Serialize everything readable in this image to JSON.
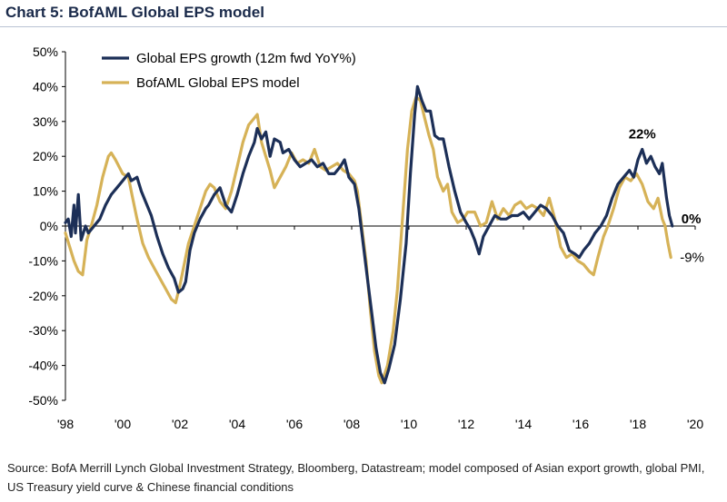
{
  "page": {
    "title": "Chart 5: BofAML Global EPS model",
    "source": "Source: BofA Merrill Lynch Global Investment Strategy, Bloomberg, Datastream; model composed of Asian export growth, global PMI, US Treasury yield curve & Chinese financial conditions"
  },
  "colors": {
    "global_eps": "#1c2f57",
    "model": "#d6b257",
    "title": "#1a2a4a"
  },
  "chart_data": {
    "type": "line",
    "ylim": [
      -50,
      50
    ],
    "yticks": [
      50,
      40,
      30,
      20,
      10,
      0,
      -10,
      -20,
      -30,
      -40,
      -50
    ],
    "ytick_labels": [
      "50%",
      "40%",
      "30%",
      "20%",
      "10%",
      "0%",
      "-10%",
      "-20%",
      "-30%",
      "-40%",
      "-50%"
    ],
    "xlim": [
      1998,
      2020
    ],
    "xticks": [
      1998,
      2000,
      2002,
      2004,
      2006,
      2008,
      2010,
      2012,
      2014,
      2016,
      2018,
      2020
    ],
    "xtick_labels": [
      "'98",
      "'00",
      "'02",
      "'04",
      "'06",
      "'08",
      "'10",
      "'12",
      "'14",
      "'16",
      "'18",
      "'20"
    ],
    "legend": "top-left",
    "series": [
      {
        "name": "Global EPS growth (12m fwd YoY%)",
        "color": "#1c2f57",
        "points": [
          [
            1998.0,
            1
          ],
          [
            1998.1,
            2
          ],
          [
            1998.2,
            -3
          ],
          [
            1998.3,
            6
          ],
          [
            1998.35,
            -2
          ],
          [
            1998.45,
            9
          ],
          [
            1998.55,
            -4
          ],
          [
            1998.7,
            0
          ],
          [
            1998.8,
            -2
          ],
          [
            1999.0,
            0
          ],
          [
            1999.2,
            2
          ],
          [
            1999.4,
            6
          ],
          [
            1999.6,
            9
          ],
          [
            1999.8,
            11
          ],
          [
            2000.0,
            13
          ],
          [
            2000.2,
            15
          ],
          [
            2000.3,
            13
          ],
          [
            2000.5,
            14
          ],
          [
            2000.65,
            10
          ],
          [
            2000.8,
            7
          ],
          [
            2001.0,
            3
          ],
          [
            2001.2,
            -3
          ],
          [
            2001.4,
            -8
          ],
          [
            2001.6,
            -12
          ],
          [
            2001.8,
            -15
          ],
          [
            2001.95,
            -19
          ],
          [
            2002.1,
            -18
          ],
          [
            2002.2,
            -16
          ],
          [
            2002.35,
            -7
          ],
          [
            2002.5,
            -2
          ],
          [
            2002.7,
            2
          ],
          [
            2002.9,
            5
          ],
          [
            2003.0,
            6
          ],
          [
            2003.2,
            9
          ],
          [
            2003.4,
            11
          ],
          [
            2003.6,
            6
          ],
          [
            2003.8,
            4
          ],
          [
            2004.0,
            9
          ],
          [
            2004.2,
            15
          ],
          [
            2004.4,
            20
          ],
          [
            2004.6,
            24
          ],
          [
            2004.7,
            28
          ],
          [
            2004.85,
            25
          ],
          [
            2005.0,
            27
          ],
          [
            2005.15,
            20
          ],
          [
            2005.3,
            25
          ],
          [
            2005.5,
            24
          ],
          [
            2005.6,
            21
          ],
          [
            2005.8,
            22
          ],
          [
            2006.0,
            19
          ],
          [
            2006.2,
            17
          ],
          [
            2006.4,
            18
          ],
          [
            2006.6,
            19
          ],
          [
            2006.8,
            17
          ],
          [
            2007.0,
            18
          ],
          [
            2007.2,
            15
          ],
          [
            2007.4,
            15
          ],
          [
            2007.6,
            17
          ],
          [
            2007.75,
            19
          ],
          [
            2007.9,
            14
          ],
          [
            2008.1,
            12
          ],
          [
            2008.25,
            5
          ],
          [
            2008.4,
            -5
          ],
          [
            2008.55,
            -15
          ],
          [
            2008.7,
            -25
          ],
          [
            2008.85,
            -35
          ],
          [
            2009.0,
            -42
          ],
          [
            2009.15,
            -45
          ],
          [
            2009.3,
            -41
          ],
          [
            2009.5,
            -34
          ],
          [
            2009.7,
            -21
          ],
          [
            2009.9,
            -5
          ],
          [
            2010.05,
            15
          ],
          [
            2010.2,
            32
          ],
          [
            2010.3,
            40
          ],
          [
            2010.45,
            36
          ],
          [
            2010.6,
            33
          ],
          [
            2010.75,
            33
          ],
          [
            2010.9,
            26
          ],
          [
            2011.05,
            25
          ],
          [
            2011.2,
            25
          ],
          [
            2011.4,
            17
          ],
          [
            2011.6,
            10
          ],
          [
            2011.8,
            4
          ],
          [
            2012.0,
            1
          ],
          [
            2012.15,
            -1
          ],
          [
            2012.3,
            -4
          ],
          [
            2012.45,
            -8
          ],
          [
            2012.6,
            -3
          ],
          [
            2012.8,
            0
          ],
          [
            2013.0,
            3
          ],
          [
            2013.2,
            2
          ],
          [
            2013.4,
            2
          ],
          [
            2013.6,
            3
          ],
          [
            2013.8,
            3
          ],
          [
            2014.0,
            4
          ],
          [
            2014.2,
            2
          ],
          [
            2014.4,
            4
          ],
          [
            2014.6,
            6
          ],
          [
            2014.8,
            5
          ],
          [
            2015.0,
            3
          ],
          [
            2015.2,
            0
          ],
          [
            2015.4,
            -2
          ],
          [
            2015.6,
            -7
          ],
          [
            2015.8,
            -8
          ],
          [
            2015.95,
            -9
          ],
          [
            2016.1,
            -7
          ],
          [
            2016.3,
            -5
          ],
          [
            2016.5,
            -2
          ],
          [
            2016.7,
            0
          ],
          [
            2016.9,
            3
          ],
          [
            2017.1,
            8
          ],
          [
            2017.3,
            12
          ],
          [
            2017.5,
            14
          ],
          [
            2017.7,
            16
          ],
          [
            2017.85,
            14
          ],
          [
            2018.0,
            19
          ],
          [
            2018.15,
            22
          ],
          [
            2018.3,
            18
          ],
          [
            2018.45,
            20
          ],
          [
            2018.6,
            17
          ],
          [
            2018.75,
            15
          ],
          [
            2018.85,
            18
          ],
          [
            2019.0,
            8
          ],
          [
            2019.1,
            3
          ],
          [
            2019.2,
            0
          ]
        ]
      },
      {
        "name": "BofAML Global EPS model",
        "color": "#d6b257",
        "points": [
          [
            1998.0,
            -2
          ],
          [
            1998.15,
            -6
          ],
          [
            1998.3,
            -10
          ],
          [
            1998.45,
            -13
          ],
          [
            1998.6,
            -14
          ],
          [
            1998.75,
            -4
          ],
          [
            1998.9,
            0
          ],
          [
            1999.1,
            6
          ],
          [
            1999.3,
            14
          ],
          [
            1999.5,
            20
          ],
          [
            1999.6,
            21
          ],
          [
            1999.75,
            19
          ],
          [
            2000.0,
            15
          ],
          [
            2000.2,
            14
          ],
          [
            2000.35,
            8
          ],
          [
            2000.5,
            2
          ],
          [
            2000.7,
            -5
          ],
          [
            2000.9,
            -9
          ],
          [
            2001.1,
            -12
          ],
          [
            2001.3,
            -15
          ],
          [
            2001.5,
            -18
          ],
          [
            2001.7,
            -21
          ],
          [
            2001.85,
            -22
          ],
          [
            2002.0,
            -17
          ],
          [
            2002.15,
            -11
          ],
          [
            2002.3,
            -5
          ],
          [
            2002.5,
            0
          ],
          [
            2002.7,
            5
          ],
          [
            2002.9,
            10
          ],
          [
            2003.05,
            12
          ],
          [
            2003.2,
            11
          ],
          [
            2003.4,
            7
          ],
          [
            2003.6,
            5
          ],
          [
            2003.8,
            10
          ],
          [
            2004.0,
            17
          ],
          [
            2004.2,
            24
          ],
          [
            2004.4,
            29
          ],
          [
            2004.6,
            31
          ],
          [
            2004.7,
            32
          ],
          [
            2004.85,
            24
          ],
          [
            2005.0,
            20
          ],
          [
            2005.15,
            16
          ],
          [
            2005.3,
            11
          ],
          [
            2005.5,
            14
          ],
          [
            2005.7,
            17
          ],
          [
            2005.9,
            21
          ],
          [
            2006.1,
            18
          ],
          [
            2006.3,
            19
          ],
          [
            2006.5,
            18
          ],
          [
            2006.7,
            22
          ],
          [
            2006.9,
            17
          ],
          [
            2007.1,
            16
          ],
          [
            2007.3,
            17
          ],
          [
            2007.5,
            18
          ],
          [
            2007.7,
            16
          ],
          [
            2007.9,
            15
          ],
          [
            2008.1,
            13
          ],
          [
            2008.2,
            10
          ],
          [
            2008.35,
            0
          ],
          [
            2008.5,
            -10
          ],
          [
            2008.65,
            -24
          ],
          [
            2008.8,
            -36
          ],
          [
            2008.95,
            -43
          ],
          [
            2009.05,
            -45
          ],
          [
            2009.25,
            -40
          ],
          [
            2009.45,
            -30
          ],
          [
            2009.6,
            -18
          ],
          [
            2009.8,
            5
          ],
          [
            2009.95,
            22
          ],
          [
            2010.1,
            33
          ],
          [
            2010.25,
            37
          ],
          [
            2010.4,
            36
          ],
          [
            2010.55,
            31
          ],
          [
            2010.7,
            26
          ],
          [
            2010.85,
            22
          ],
          [
            2011.0,
            14
          ],
          [
            2011.2,
            10
          ],
          [
            2011.35,
            12
          ],
          [
            2011.5,
            4
          ],
          [
            2011.7,
            1
          ],
          [
            2011.9,
            2
          ],
          [
            2012.05,
            4
          ],
          [
            2012.3,
            4
          ],
          [
            2012.5,
            0
          ],
          [
            2012.7,
            1
          ],
          [
            2012.9,
            7
          ],
          [
            2013.1,
            2
          ],
          [
            2013.3,
            5
          ],
          [
            2013.5,
            3
          ],
          [
            2013.7,
            6
          ],
          [
            2013.9,
            7
          ],
          [
            2014.1,
            5
          ],
          [
            2014.3,
            6
          ],
          [
            2014.5,
            5
          ],
          [
            2014.7,
            3
          ],
          [
            2014.9,
            8
          ],
          [
            2015.1,
            2
          ],
          [
            2015.3,
            -6
          ],
          [
            2015.5,
            -9
          ],
          [
            2015.7,
            -8
          ],
          [
            2015.9,
            -10
          ],
          [
            2016.1,
            -11
          ],
          [
            2016.3,
            -13
          ],
          [
            2016.45,
            -14
          ],
          [
            2016.6,
            -9
          ],
          [
            2016.8,
            -3
          ],
          [
            2016.95,
            0
          ],
          [
            2017.15,
            5
          ],
          [
            2017.35,
            11
          ],
          [
            2017.55,
            14
          ],
          [
            2017.75,
            13
          ],
          [
            2017.95,
            15
          ],
          [
            2018.15,
            12
          ],
          [
            2018.35,
            7
          ],
          [
            2018.55,
            5
          ],
          [
            2018.7,
            8
          ],
          [
            2018.85,
            2
          ],
          [
            2018.95,
            0
          ],
          [
            2019.05,
            -5
          ],
          [
            2019.15,
            -9
          ]
        ]
      }
    ],
    "annotations": [
      {
        "text": "22%",
        "x": 2018.15,
        "y": 22,
        "bold": true
      },
      {
        "text": "0%",
        "x": 2019.2,
        "y": 0,
        "bold": true
      },
      {
        "text": "-9%",
        "x": 2019.15,
        "y": -9,
        "bold": false
      }
    ]
  }
}
